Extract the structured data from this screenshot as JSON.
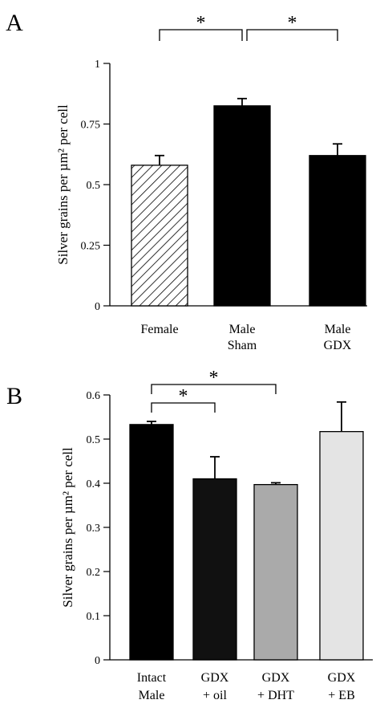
{
  "chart_data": [
    {
      "panel_label": "A",
      "type": "bar",
      "categories": [
        [
          "Female"
        ],
        [
          "Male",
          "Sham"
        ],
        [
          "Male",
          "GDX"
        ]
      ],
      "values": [
        0.58,
        0.825,
        0.62
      ],
      "errors": [
        0.04,
        0.03,
        0.048
      ],
      "fills": [
        "hatch",
        "#000000",
        "#000000"
      ],
      "ylabel": "Silver grains per µm² per cell",
      "ylim": [
        0,
        1
      ],
      "yticks": [
        "0",
        "0.25",
        "0.5",
        "0.75",
        "1"
      ],
      "ytick_values": [
        0,
        0.25,
        0.5,
        0.75,
        1
      ],
      "significance": [
        {
          "from": 0,
          "to": 1,
          "label": "*"
        },
        {
          "from": 1,
          "to": 2,
          "label": "*"
        }
      ],
      "grid": false,
      "legend": "none"
    },
    {
      "panel_label": "B",
      "type": "bar",
      "categories": [
        [
          "Intact",
          "Male"
        ],
        [
          "GDX",
          "+ oil"
        ],
        [
          "GDX",
          "+ DHT"
        ],
        [
          "GDX",
          "+ EB"
        ]
      ],
      "values": [
        0.533,
        0.41,
        0.397,
        0.517
      ],
      "errors": [
        0.007,
        0.05,
        0.004,
        0.067
      ],
      "fills": [
        "#000000",
        "#111111",
        "#aaaaaa",
        "#e4e4e4"
      ],
      "ylabel": "Silver grains per µm² per cell",
      "ylim": [
        0,
        0.6
      ],
      "yticks": [
        "0",
        "0.1",
        "0.2",
        "0.3",
        "0.4",
        "0.5",
        "0.6"
      ],
      "ytick_values": [
        0,
        0.1,
        0.2,
        0.3,
        0.4,
        0.5,
        0.6
      ],
      "significance": [
        {
          "from": 0,
          "to": 1,
          "label": "*"
        },
        {
          "from": 0,
          "to": 2,
          "label": "*"
        }
      ],
      "grid": false,
      "legend": "none"
    }
  ]
}
